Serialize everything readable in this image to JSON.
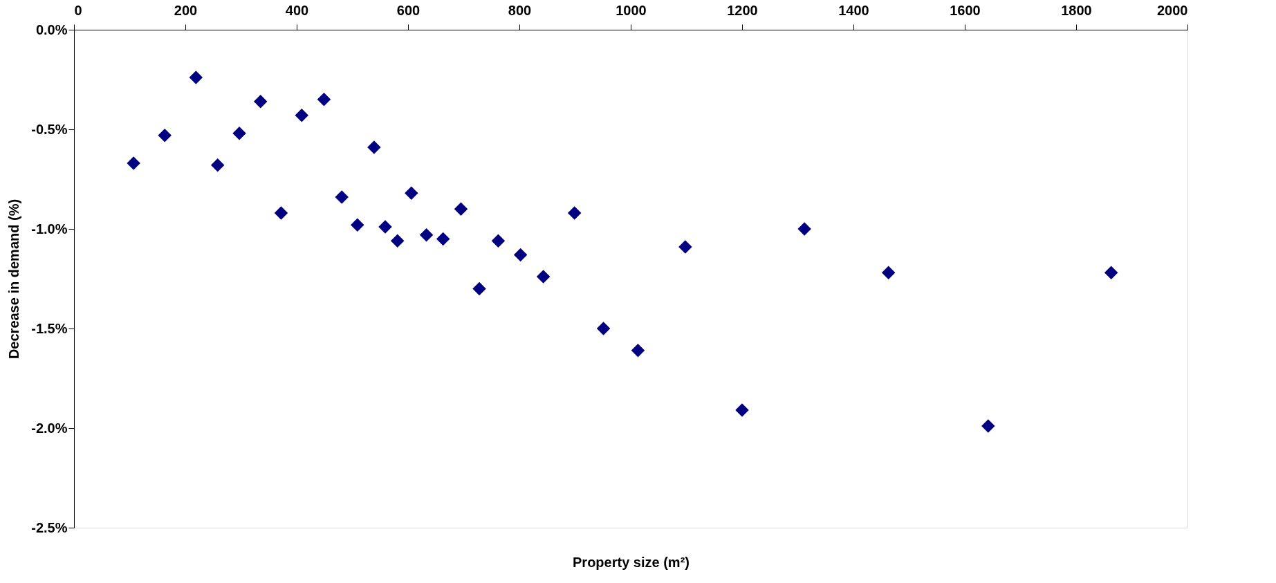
{
  "chart_data": {
    "type": "scatter",
    "xlabel": "Property size (m²)",
    "ylabel": "Decrease in demand (%)",
    "x": [
      107,
      163,
      219,
      258,
      297,
      335,
      372,
      409,
      449,
      481,
      509,
      539,
      559,
      581,
      606,
      633,
      663,
      695,
      728,
      762,
      802,
      843,
      899,
      951,
      1013,
      1098,
      1200,
      1312,
      1463,
      1642,
      1863
    ],
    "series": [
      {
        "color": "#000080",
        "values": [
          -0.67,
          -0.53,
          -0.24,
          -0.68,
          -0.52,
          -0.36,
          -0.92,
          -0.43,
          -0.35,
          -0.84,
          -0.98,
          -0.59,
          -0.99,
          -1.06,
          -0.82,
          -1.03,
          -1.05,
          -0.9,
          -1.3,
          -1.06,
          -1.13,
          -1.24,
          -0.92,
          -1.5,
          -1.61,
          -1.09,
          -1.91,
          -1.0,
          -1.22,
          -1.99,
          -1.22
        ]
      }
    ],
    "xlim": [
      0,
      2000
    ],
    "xticks": [
      0,
      200,
      400,
      600,
      800,
      1000,
      1200,
      1400,
      1600,
      1800,
      2000
    ],
    "ylim": [
      -2.5,
      0
    ],
    "yticks": [
      {
        "value": -2.5,
        "label": "-2.5%"
      },
      {
        "value": -2.0,
        "label": "-2.0%"
      },
      {
        "value": -1.5,
        "label": "-1.5%"
      },
      {
        "value": -1.0,
        "label": "-1.0%"
      },
      {
        "value": -0.5,
        "label": "-0.5%"
      },
      {
        "value": 0,
        "label": "0.0%"
      }
    ],
    "marker": "diamond",
    "grid": false
  }
}
